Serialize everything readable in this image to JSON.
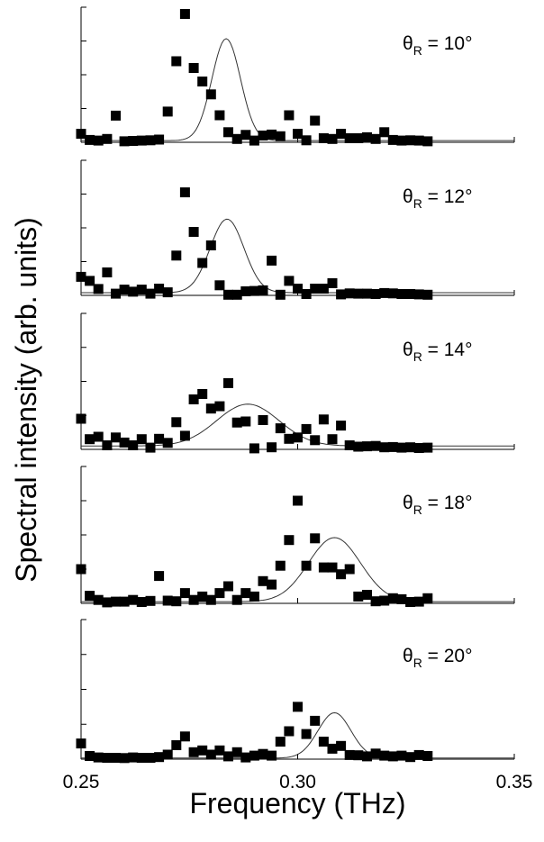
{
  "figure": {
    "ylabel": "Spectral intensity (arb. units)",
    "xlabel": "Frequency (THz)"
  },
  "chart_data": [
    {
      "type": "scatter",
      "annotation": {
        "symbol": "θ",
        "subscript": "R",
        "text": " = 10°"
      },
      "xlim": [
        0.25,
        0.35
      ],
      "xticks": [
        0.25,
        0.3,
        0.35
      ],
      "ylim": [
        0,
        4
      ],
      "yticks": [
        0,
        1,
        2,
        3,
        4
      ],
      "x_step": 0.002,
      "points": [
        0.25,
        0.07,
        0.05,
        0.1,
        0.79,
        0.03,
        0.04,
        0.05,
        0.06,
        0.08,
        0.91,
        2.4,
        3.8,
        2.2,
        1.8,
        1.42,
        0.8,
        0.3,
        0.1,
        0.22,
        0.05,
        0.2,
        0.23,
        0.18,
        0.8,
        0.25,
        0.06,
        0.64,
        0.12,
        0.1,
        0.25,
        0.12,
        0.12,
        0.15,
        0.1,
        0.3,
        0.07,
        0.05,
        0.06,
        0.05,
        0.03
      ],
      "fit": {
        "baseline": 0.05,
        "amp": 3.02,
        "center": 0.2835,
        "sigma": 0.0033
      }
    },
    {
      "type": "scatter",
      "annotation": {
        "symbol": "θ",
        "subscript": "R",
        "text": " = 12°"
      },
      "xlim": [
        0.25,
        0.35
      ],
      "xticks": [
        0.25,
        0.3,
        0.35
      ],
      "ylim": [
        0,
        4
      ],
      "yticks": [
        0,
        1,
        2,
        3,
        4
      ],
      "x_step": 0.002,
      "points": [
        0.55,
        0.43,
        0.19,
        0.68,
        0.05,
        0.17,
        0.11,
        0.17,
        0.05,
        0.2,
        0.09,
        1.18,
        3.05,
        1.88,
        0.96,
        1.48,
        0.3,
        0.02,
        0.02,
        0.12,
        0.13,
        0.15,
        1.03,
        0.02,
        0.43,
        0.2,
        0.04,
        0.2,
        0.2,
        0.36,
        0.03,
        0.06,
        0.05,
        0.05,
        0.04,
        0.07,
        0.06,
        0.04,
        0.04,
        0.03,
        0.02
      ],
      "fit": {
        "baseline": 0.08,
        "amp": 2.18,
        "center": 0.2837,
        "sigma": 0.0039
      }
    },
    {
      "type": "scatter",
      "annotation": {
        "symbol": "θ",
        "subscript": "R",
        "text": " = 14°"
      },
      "xlim": [
        0.25,
        0.35
      ],
      "xticks": [
        0.25,
        0.3,
        0.35
      ],
      "ylim": [
        0,
        4
      ],
      "yticks": [
        0,
        1,
        2,
        3,
        4
      ],
      "x_step": 0.002,
      "points": [
        0.9,
        0.3,
        0.37,
        0.12,
        0.35,
        0.2,
        0.12,
        0.3,
        0.05,
        0.31,
        0.19,
        0.8,
        0.4,
        1.47,
        1.63,
        1.2,
        1.27,
        1.95,
        0.79,
        0.82,
        0.03,
        0.86,
        0.06,
        0.62,
        0.31,
        0.35,
        0.6,
        0.27,
        0.88,
        0.3,
        0.7,
        0.12,
        0.08,
        0.09,
        0.1,
        0.06,
        0.07,
        0.05,
        0.06,
        0.04,
        0.05
      ],
      "fit": {
        "baseline": 0.1,
        "amp": 1.23,
        "center": 0.2885,
        "sigma": 0.0072
      }
    },
    {
      "type": "scatter",
      "annotation": {
        "symbol": "θ",
        "subscript": "R",
        "text": " = 18°"
      },
      "xlim": [
        0.25,
        0.35
      ],
      "xticks": [
        0.25,
        0.3,
        0.35
      ],
      "ylim": [
        0,
        4
      ],
      "yticks": [
        0,
        1,
        2,
        3,
        4
      ],
      "x_step": 0.002,
      "points": [
        1.0,
        0.22,
        0.1,
        0.03,
        0.05,
        0.05,
        0.1,
        0.04,
        0.07,
        0.8,
        0.08,
        0.06,
        0.3,
        0.1,
        0.2,
        0.1,
        0.3,
        0.5,
        0.1,
        0.3,
        0.2,
        0.65,
        0.55,
        1.1,
        1.85,
        3.0,
        1.1,
        1.9,
        1.05,
        1.05,
        0.85,
        1.0,
        0.2,
        0.25,
        0.06,
        0.08,
        0.15,
        0.12,
        0.04,
        0.05,
        0.15
      ],
      "fit": {
        "baseline": 0.05,
        "amp": 1.87,
        "center": 0.3085,
        "sigma": 0.006
      }
    },
    {
      "type": "scatter",
      "annotation": {
        "symbol": "θ",
        "subscript": "R",
        "text": " = 20°"
      },
      "xlim": [
        0.25,
        0.35
      ],
      "xticks": [
        0.25,
        0.3,
        0.35
      ],
      "xtick_labels": [
        "0.25",
        "0.30",
        "0.35"
      ],
      "ylim": [
        0,
        4
      ],
      "yticks": [
        0,
        1,
        2,
        3,
        4
      ],
      "x_step": 0.002,
      "points": [
        0.45,
        0.09,
        0.05,
        0.04,
        0.04,
        0.03,
        0.05,
        0.04,
        0.04,
        0.06,
        0.13,
        0.4,
        0.65,
        0.2,
        0.25,
        0.13,
        0.25,
        0.08,
        0.2,
        0.05,
        0.1,
        0.15,
        0.1,
        0.5,
        0.8,
        1.5,
        0.72,
        1.1,
        0.5,
        0.3,
        0.38,
        0.12,
        0.11,
        0.08,
        0.16,
        0.1,
        0.08,
        0.1,
        0.06,
        0.12,
        0.09
      ],
      "fit": {
        "baseline": 0.03,
        "amp": 1.3,
        "center": 0.3085,
        "sigma": 0.0038
      }
    }
  ]
}
